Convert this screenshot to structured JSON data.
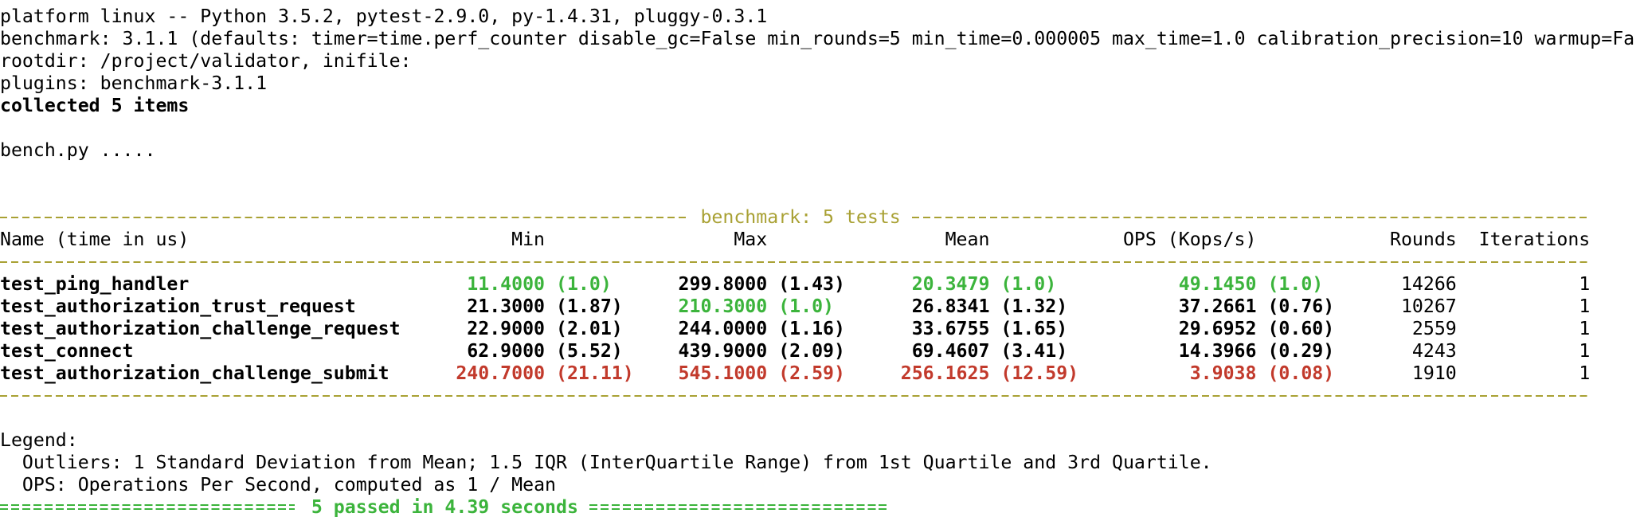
{
  "session_lines": [
    "platform linux -- Python 3.5.2, pytest-2.9.0, py-1.4.31, pluggy-0.3.1",
    "benchmark: 3.1.1 (defaults: timer=time.perf_counter disable_gc=False min_rounds=5 min_time=0.000005 max_time=1.0 calibration_precision=10 warmup=Fa",
    "rootdir: /project/validator, inifile:",
    "plugins: benchmark-3.1.1"
  ],
  "collected": "collected 5 items",
  "progress": "bench.py .....",
  "benchmark_table": {
    "title": "benchmark: 5 tests",
    "columns": [
      "Name (time in us)",
      "Min",
      "Max",
      "Mean",
      "OPS (Kops/s)",
      "Rounds",
      "Iterations"
    ],
    "rows": [
      {
        "name": "test_ping_handler",
        "cells": [
          {
            "value": "11.4000",
            "ratio": "(1.0)",
            "status": "best"
          },
          {
            "value": "299.8000",
            "ratio": "(1.43)",
            "status": null
          },
          {
            "value": "20.3479",
            "ratio": "(1.0)",
            "status": "best"
          },
          {
            "value": "49.1450",
            "ratio": "(1.0)",
            "status": "best"
          }
        ],
        "rounds": "14266",
        "iterations": "1"
      },
      {
        "name": "test_authorization_trust_request",
        "cells": [
          {
            "value": "21.3000",
            "ratio": "(1.87)",
            "status": null
          },
          {
            "value": "210.3000",
            "ratio": "(1.0)",
            "status": "best"
          },
          {
            "value": "26.8341",
            "ratio": "(1.32)",
            "status": null
          },
          {
            "value": "37.2661",
            "ratio": "(0.76)",
            "status": null
          }
        ],
        "rounds": "10267",
        "iterations": "1"
      },
      {
        "name": "test_authorization_challenge_request",
        "cells": [
          {
            "value": "22.9000",
            "ratio": "(2.01)",
            "status": null
          },
          {
            "value": "244.0000",
            "ratio": "(1.16)",
            "status": null
          },
          {
            "value": "33.6755",
            "ratio": "(1.65)",
            "status": null
          },
          {
            "value": "29.6952",
            "ratio": "(0.60)",
            "status": null
          }
        ],
        "rounds": "2559",
        "iterations": "1"
      },
      {
        "name": "test_connect",
        "cells": [
          {
            "value": "62.9000",
            "ratio": "(5.52)",
            "status": null
          },
          {
            "value": "439.9000",
            "ratio": "(2.09)",
            "status": null
          },
          {
            "value": "69.4607",
            "ratio": "(3.41)",
            "status": null
          },
          {
            "value": "14.3966",
            "ratio": "(0.29)",
            "status": null
          }
        ],
        "rounds": "4243",
        "iterations": "1"
      },
      {
        "name": "test_authorization_challenge_submit",
        "cells": [
          {
            "value": "240.7000",
            "ratio": "(21.11)",
            "status": "worst"
          },
          {
            "value": "545.1000",
            "ratio": "(2.59)",
            "status": "worst"
          },
          {
            "value": "256.1625",
            "ratio": "(12.59)",
            "status": "worst"
          },
          {
            "value": "3.9038",
            "ratio": "(0.08)",
            "status": "worst"
          }
        ],
        "rounds": "1910",
        "iterations": "1"
      }
    ]
  },
  "legend": {
    "title": "Legend:",
    "lines": [
      "Outliers: 1 Standard Deviation from Mean; 1.5 IQR (InterQuartile Range) from 1st Quartile and 3rd Quartile.",
      "OPS: Operations Per Second, computed as 1 / Mean"
    ]
  },
  "summary": "5 passed in 4.39 seconds"
}
